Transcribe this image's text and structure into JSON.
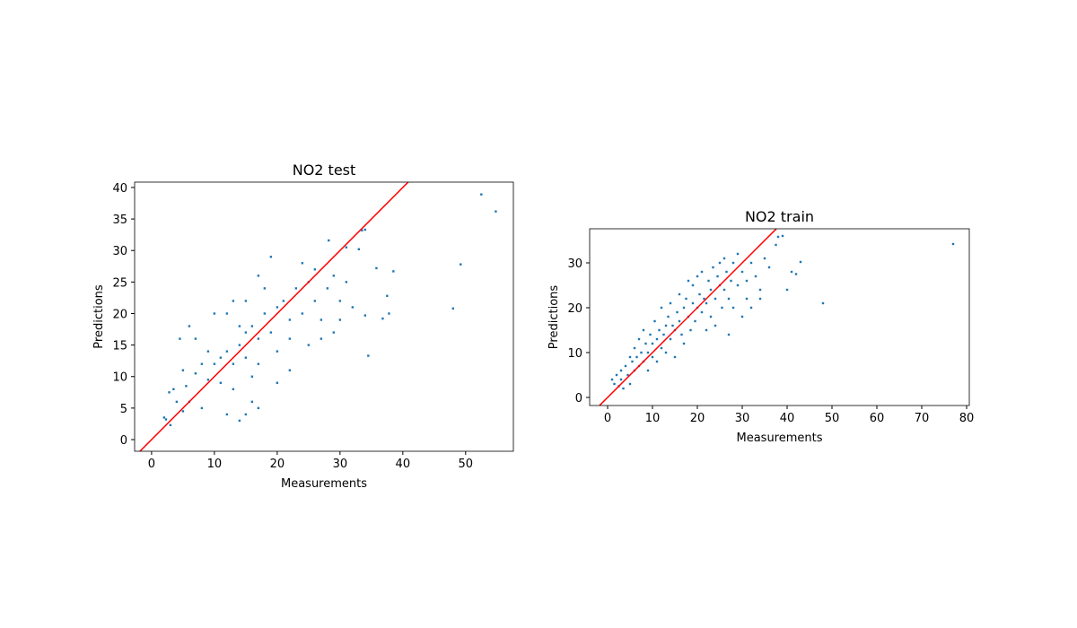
{
  "chart_data": [
    {
      "type": "scatter",
      "title": "NO2 test",
      "xlabel": "Measurements",
      "ylabel": "Predictions",
      "color": "#1f77b4",
      "identity_line": true,
      "identity_color": "#ff0000",
      "xlim": [
        -2.7,
        57.6
      ],
      "ylim": [
        -1.85,
        40.85
      ],
      "xticks": [
        0,
        10,
        20,
        30,
        40,
        50
      ],
      "yticks": [
        0,
        5,
        10,
        15,
        20,
        25,
        30,
        35,
        40
      ],
      "x": [
        52.5,
        54.8,
        49.2,
        48,
        34.5,
        37.8,
        36.8,
        38.5,
        37.5,
        35.8,
        33.5,
        34,
        33,
        31,
        28.2,
        2,
        2.3,
        3,
        2.8,
        3.5,
        4,
        5,
        6,
        5.5,
        7,
        8,
        9,
        10,
        11,
        12,
        13,
        14,
        15,
        16,
        17,
        18,
        19,
        20,
        21,
        22,
        23,
        24,
        25,
        26,
        27,
        28,
        30,
        29,
        12,
        13,
        14,
        15,
        16,
        17,
        18,
        19,
        20,
        22,
        24,
        26,
        12,
        14,
        15,
        16,
        17,
        6,
        7,
        4.5,
        8,
        10,
        11,
        13,
        15,
        17,
        20,
        22,
        25,
        27,
        29,
        30,
        31,
        32,
        34,
        9,
        5
      ],
      "values": [
        38.9,
        36.2,
        27.8,
        20.8,
        13.3,
        20,
        19.2,
        26.7,
        22.8,
        27.2,
        33.2,
        33.3,
        30.2,
        30.5,
        31.6,
        3.5,
        3.2,
        2.3,
        7.5,
        8,
        6,
        4.5,
        6,
        8.5,
        10.5,
        12,
        9.5,
        12,
        13,
        14,
        12,
        15,
        17,
        18,
        16,
        20,
        17,
        21,
        22,
        19,
        24,
        20,
        25,
        22,
        19,
        24,
        22,
        26,
        20,
        22,
        18,
        13,
        10,
        12,
        24,
        29,
        9,
        11,
        28,
        27,
        4,
        3,
        4,
        6,
        5,
        18,
        16,
        16,
        5,
        20,
        9,
        8,
        22,
        26,
        14,
        16,
        15,
        16,
        17,
        19,
        25,
        21,
        19.7,
        14,
        11
      ]
    },
    {
      "type": "scatter",
      "title": "NO2 train",
      "xlabel": "Measurements",
      "ylabel": "Predictions",
      "color": "#1f77b4",
      "identity_line": true,
      "identity_color": "#ff0000",
      "xlim": [
        -4.0,
        80.6
      ],
      "ylim": [
        -1.8,
        37.6
      ],
      "xticks": [
        0,
        10,
        20,
        30,
        40,
        50,
        60,
        70,
        80
      ],
      "yticks": [
        0,
        10,
        20,
        30
      ],
      "x": [
        1,
        1.5,
        2,
        2.5,
        3,
        3,
        3.5,
        4,
        4.5,
        5,
        5,
        5.5,
        6,
        6,
        6.5,
        7,
        7,
        7.5,
        8,
        8,
        8.5,
        9,
        9,
        9.5,
        10,
        10,
        10.5,
        11,
        11,
        11.5,
        12,
        12,
        12.5,
        13,
        13,
        13.5,
        14,
        14,
        14.5,
        15,
        15,
        15.5,
        16,
        16,
        16.5,
        17,
        17,
        17.5,
        18,
        18,
        18.5,
        19,
        19,
        19.5,
        20,
        20,
        20.5,
        21,
        21,
        21.5,
        22,
        22,
        22.5,
        23,
        23,
        23.5,
        24,
        24,
        24.5,
        25,
        25,
        25.5,
        26,
        26,
        26.5,
        27,
        27,
        27.5,
        28,
        28,
        29,
        29,
        30,
        30,
        31,
        31,
        32,
        32,
        33,
        34,
        34,
        35,
        36,
        37.5,
        38,
        39,
        40,
        41,
        42,
        43,
        48,
        77
      ],
      "values": [
        4,
        3,
        5,
        2.5,
        6,
        4,
        2,
        7,
        5,
        9,
        3,
        8,
        6,
        11,
        9,
        7,
        13,
        10,
        8,
        15,
        12,
        10,
        6,
        14,
        12,
        9,
        17,
        13,
        8,
        15,
        11,
        20,
        14,
        16,
        10,
        18,
        13,
        21,
        16,
        15,
        9,
        19,
        17,
        23,
        14,
        20,
        12,
        22,
        18,
        26,
        15,
        21,
        25,
        17,
        20,
        27,
        23,
        19,
        28,
        22,
        21,
        15,
        26,
        24,
        18,
        29,
        22,
        16,
        27,
        25,
        30,
        20,
        24,
        31,
        28,
        22,
        14,
        26,
        30,
        20,
        25,
        32,
        28,
        18,
        26,
        22,
        30,
        20,
        27,
        24,
        22,
        31,
        29,
        34,
        35.8,
        36,
        24,
        28,
        27.5,
        30.2,
        21,
        34.2
      ]
    }
  ]
}
